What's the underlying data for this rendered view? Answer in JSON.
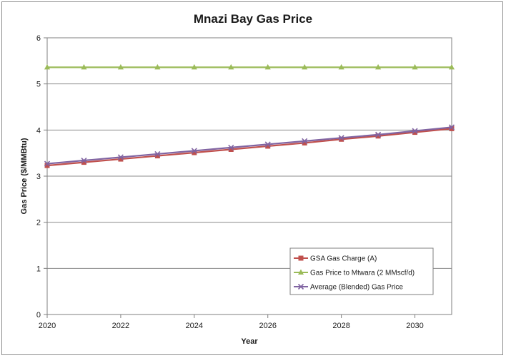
{
  "chart_data": {
    "type": "line",
    "title": "Mnazi Bay Gas Price",
    "xlabel": "Year",
    "ylabel": "Gas Price ($/MMBtu)",
    "x": [
      2020,
      2021,
      2022,
      2023,
      2024,
      2025,
      2026,
      2027,
      2028,
      2029,
      2030,
      2031
    ],
    "xlim": [
      2020,
      2031
    ],
    "ylim": [
      0,
      6
    ],
    "x_ticks": [
      2020,
      2022,
      2024,
      2026,
      2028,
      2030
    ],
    "y_ticks": [
      0,
      1,
      2,
      3,
      4,
      5,
      6
    ],
    "grid": "horizontal",
    "legend_position": "bottom-right",
    "series": [
      {
        "name": "GSA Gas Charge (A)",
        "color": "#c0504d",
        "marker": "square",
        "values": [
          3.23,
          3.3,
          3.37,
          3.44,
          3.51,
          3.58,
          3.65,
          3.72,
          3.8,
          3.87,
          3.95,
          4.03
        ]
      },
      {
        "name": "Gas Price to Mtwara (2 MMscf/d)",
        "color": "#9bbb59",
        "marker": "triangle",
        "values": [
          5.36,
          5.36,
          5.36,
          5.36,
          5.36,
          5.36,
          5.36,
          5.36,
          5.36,
          5.36,
          5.36,
          5.36
        ]
      },
      {
        "name": "Average (Blended) Gas Price",
        "color": "#8064a2",
        "marker": "x",
        "values": [
          3.27,
          3.34,
          3.41,
          3.48,
          3.55,
          3.62,
          3.69,
          3.76,
          3.83,
          3.9,
          3.98,
          4.06
        ]
      }
    ]
  }
}
